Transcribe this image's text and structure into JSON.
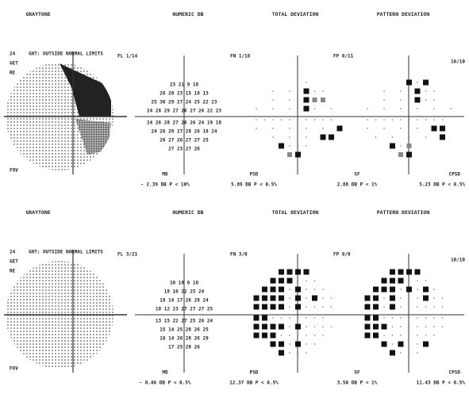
{
  "panels": [
    {
      "headers": [
        "GRAYTONE",
        "NUMERIC DB",
        "TOTAL DEVIATION",
        "PATTERN DEVIATION"
      ],
      "test": "24",
      "get": "GET",
      "eye": "RE",
      "fov": "FOV",
      "ght": "GHT: OUTSIDE NORMAL LIMITS",
      "fl": "FL 1/14",
      "fn": "FN 1/18",
      "fp": "FP 0/11",
      "ratio": "10/10",
      "md_label": "MD",
      "md": "- 2.39 DB P < 10%",
      "psd_label": "PSD",
      "psd": "5.89 DB P < 0.5%",
      "sf_label": "SF",
      "sf": "2.88 DB P < 1%",
      "cpsd_label": "CPSD",
      "cpsd": "5.23 DB P < 0.5%",
      "numeric": [
        "23 21 9 18",
        "26 28 23 15 18 13",
        "25 30 29 27 24 25 22 23",
        "24 28 29 27 26 27 26 22 23",
        "24 26 28 27 26 26 24 19 18",
        "24 26 28 27 28 26 18 24",
        "26 27 26 27 27 25",
        "27 23 27 26"
      ]
    },
    {
      "headers": [
        "GRAYTONE",
        "NUMERIC DB",
        "TOTAL DEVIATION",
        "PATTERN DEVIATION"
      ],
      "test": "24",
      "get": "GET",
      "eye": "RE",
      "fov": "FOV",
      "ght": "GHT: OUTSIDE NORMAL LIMITS",
      "fl": "FL 3/21",
      "fn": "FN 3/0",
      "fp": "FP 0/0",
      "ratio": "10/10",
      "md_label": "MD",
      "md": "- 8.46 DB P < 0.5%",
      "psd_label": "PSD",
      "psd": "12.37 DB P < 0.5%",
      "sf_label": "SF",
      "sf": "3.50 DB P < 1%",
      "cpsd_label": "CPSD",
      "cpsd": "11.43 DB P < 0.5%",
      "numeric": [
        "10 18 8 18",
        "18 16 22 25 24",
        "18 14 17 26 28 24",
        "18 12 23 27 27 27 25",
        "13 15 22 27 25 26 24",
        "15 14 25 28 26 25",
        "16 14 26 28 26 29",
        "17 25 28 26"
      ]
    }
  ]
}
